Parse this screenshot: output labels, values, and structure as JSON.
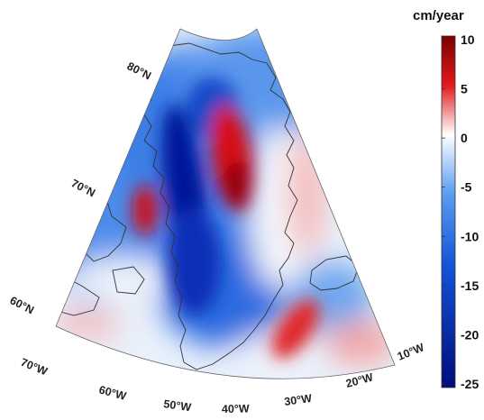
{
  "colorbar": {
    "unit": "cm/year",
    "ticks": [
      "10",
      "5",
      "0",
      "-5",
      "-10",
      "-15",
      "-20",
      "-25"
    ],
    "range": [
      -25,
      10
    ],
    "colors": {
      "max": "#8b0000",
      "mid_pos": "#e8181a",
      "zero": "#ffffff",
      "mid_neg": "#1e5fe0",
      "min": "#00108a"
    }
  },
  "lat_labels": [
    "80°N",
    "70°N",
    "60°N"
  ],
  "lon_labels": [
    "70°W",
    "60°W",
    "50°W",
    "40°W",
    "30°W",
    "20°W",
    "10°W"
  ],
  "map": {
    "region": "Greenland",
    "coastline_color": "#333333"
  }
}
